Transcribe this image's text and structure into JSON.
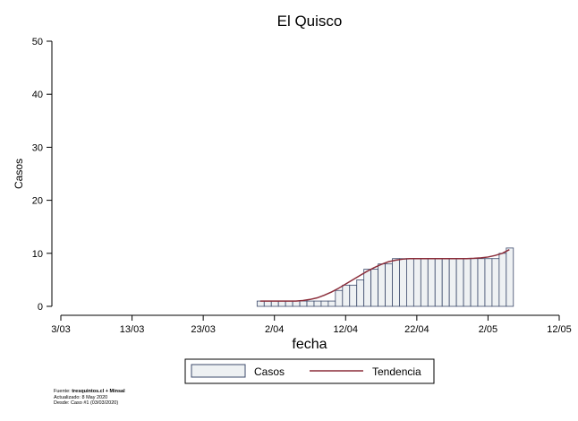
{
  "chart_data": {
    "type": "bar",
    "title": "El Quisco",
    "xlabel": "fecha",
    "ylabel": "Casos",
    "ylim": [
      0,
      50
    ],
    "yticks": [
      0,
      10,
      20,
      30,
      40,
      50
    ],
    "xrange_days_from_first_tick": [
      0,
      70
    ],
    "xticks": [
      {
        "label": "3/03",
        "day": 0
      },
      {
        "label": "13/03",
        "day": 10
      },
      {
        "label": "23/03",
        "day": 20
      },
      {
        "label": "2/04",
        "day": 30
      },
      {
        "label": "12/04",
        "day": 40
      },
      {
        "label": "22/04",
        "day": 50
      },
      {
        "label": "2/05",
        "day": 60
      },
      {
        "label": "12/05",
        "day": 70
      }
    ],
    "grid": false,
    "legend_position": "bottom",
    "series": [
      {
        "name": "Casos",
        "color": "#eef1f3",
        "edge_color": "#3c4a6b",
        "x": [
          "2/04",
          "3/04",
          "4/04",
          "5/04",
          "6/04",
          "7/04",
          "8/04",
          "9/04",
          "10/04",
          "11/04",
          "12/04",
          "13/04",
          "14/04",
          "15/04",
          "16/04",
          "17/04",
          "18/04",
          "19/04",
          "20/04",
          "21/04",
          "22/04",
          "23/04",
          "24/04",
          "25/04",
          "26/04",
          "27/04",
          "28/04",
          "29/04",
          "30/04",
          "1/05",
          "2/05",
          "3/05",
          "4/05",
          "5/05",
          "6/05",
          "7/05"
        ],
        "values": [
          1,
          1,
          1,
          1,
          1,
          1,
          1,
          1,
          1,
          1,
          1,
          3,
          4,
          4,
          5,
          7,
          7,
          8,
          8,
          9,
          9,
          9,
          9,
          9,
          9,
          9,
          9,
          9,
          9,
          9,
          9,
          9,
          9,
          9,
          10,
          11
        ]
      },
      {
        "name": "Tendencia",
        "type": "line",
        "color": "#8b2d3a",
        "x": [
          "2/04",
          "3/04",
          "4/04",
          "5/04",
          "6/04",
          "7/04",
          "8/04",
          "9/04",
          "10/04",
          "11/04",
          "12/04",
          "13/04",
          "14/04",
          "15/04",
          "16/04",
          "17/04",
          "18/04",
          "19/04",
          "20/04",
          "21/04",
          "22/04",
          "23/04",
          "24/04",
          "25/04",
          "26/04",
          "27/04",
          "28/04",
          "29/04",
          "30/04",
          "1/05",
          "2/05",
          "3/05",
          "4/05",
          "5/05",
          "6/05",
          "7/05"
        ],
        "values": [
          1,
          1,
          1,
          1,
          1,
          1,
          1.1,
          1.3,
          1.6,
          2.1,
          2.7,
          3.4,
          4.2,
          5,
          5.8,
          6.6,
          7.3,
          7.9,
          8.4,
          8.7,
          8.9,
          9,
          9,
          9,
          9,
          9,
          9,
          9,
          9,
          9,
          9.05,
          9.15,
          9.3,
          9.6,
          10,
          10.7
        ]
      }
    ],
    "legend": [
      "Casos",
      "Tendencia"
    ]
  },
  "footer": {
    "source_prefix": "Fuente: ",
    "source_bold": "tresquintos.cl + Minsal",
    "updated": "Actualizado: 8 May 2020",
    "since": "Desde: Caso #1  (03/03/2020)"
  }
}
